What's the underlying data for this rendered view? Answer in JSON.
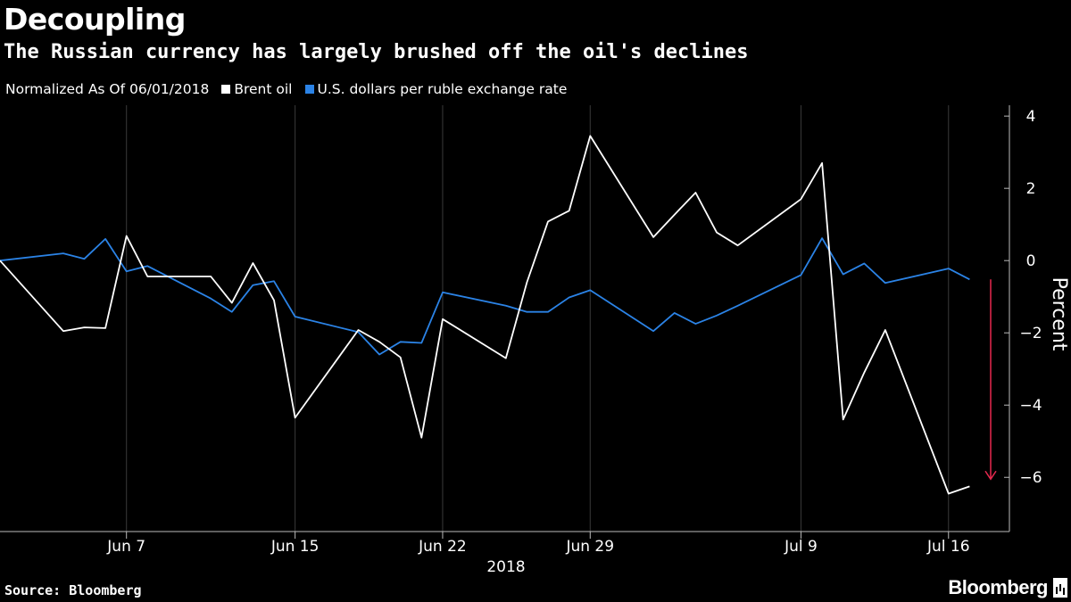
{
  "header": {
    "title": "Decoupling",
    "subtitle": "The Russian currency has largely brushed off the oil's declines"
  },
  "legend": {
    "prefix": "Normalized As Of 06/01/2018",
    "items": [
      {
        "label": "Brent oil",
        "color": "#ffffff"
      },
      {
        "label": "U.S. dollars per ruble exchange rate",
        "color": "#2b83e6"
      }
    ]
  },
  "footer": {
    "source": "Source: Bloomberg",
    "brand": "Bloomberg"
  },
  "chart_data": {
    "type": "line",
    "title": "Decoupling",
    "subtitle": "The Russian currency has largely brushed off the oil's declines",
    "ylabel": "Percent",
    "xlabel": "2018",
    "ylim": [
      -7.5,
      4.3
    ],
    "yticks": [
      4,
      2,
      0,
      -2,
      -4,
      -6
    ],
    "x": [
      "2018-06-01",
      "2018-06-04",
      "2018-06-05",
      "2018-06-06",
      "2018-06-07",
      "2018-06-08",
      "2018-06-11",
      "2018-06-12",
      "2018-06-13",
      "2018-06-14",
      "2018-06-15",
      "2018-06-18",
      "2018-06-19",
      "2018-06-20",
      "2018-06-21",
      "2018-06-22",
      "2018-06-25",
      "2018-06-26",
      "2018-06-27",
      "2018-06-28",
      "2018-06-29",
      "2018-07-02",
      "2018-07-03",
      "2018-07-04",
      "2018-07-05",
      "2018-07-06",
      "2018-07-09",
      "2018-07-10",
      "2018-07-11",
      "2018-07-12",
      "2018-07-13",
      "2018-07-16",
      "2018-07-17"
    ],
    "xlim": [
      "2018-06-01",
      "2018-07-18"
    ],
    "xticks": [
      {
        "date": "2018-06-07",
        "label": "Jun 7"
      },
      {
        "date": "2018-06-15",
        "label": "Jun 15"
      },
      {
        "date": "2018-06-22",
        "label": "Jun 22"
      },
      {
        "date": "2018-06-29",
        "label": "Jun 29"
      },
      {
        "date": "2018-07-09",
        "label": "Jul 9"
      },
      {
        "date": "2018-07-16",
        "label": "Jul 16"
      }
    ],
    "series": [
      {
        "name": "Brent oil",
        "color": "#ffffff",
        "values": [
          0,
          -1.95,
          -1.85,
          -1.87,
          0.68,
          -0.44,
          -0.44,
          -1.17,
          -0.07,
          -1.1,
          -4.35,
          -1.92,
          -2.25,
          -2.68,
          -4.9,
          -1.62,
          -2.7,
          -0.6,
          1.08,
          1.38,
          3.45,
          0.65,
          1.27,
          1.88,
          0.78,
          0.42,
          1.7,
          2.7,
          -4.4,
          -3.1,
          -1.92,
          -6.45,
          -6.25
        ]
      },
      {
        "name": "U.S. dollars per ruble exchange rate",
        "color": "#2b83e6",
        "values": [
          0,
          0.2,
          0.05,
          0.6,
          -0.3,
          -0.15,
          -1.05,
          -1.42,
          -0.68,
          -0.57,
          -1.55,
          -1.98,
          -2.6,
          -2.25,
          -2.28,
          -0.88,
          -1.25,
          -1.42,
          -1.42,
          -1.02,
          -0.82,
          -1.95,
          -1.45,
          -1.75,
          -1.52,
          -1.25,
          -0.4,
          0.62,
          -0.38,
          -0.08,
          -0.62,
          -0.22,
          -0.52
        ]
      }
    ],
    "annotations": [
      {
        "type": "arrow",
        "color": "#e8294f",
        "x": "2018-07-18",
        "from": -0.52,
        "to": -6.05
      }
    ]
  }
}
